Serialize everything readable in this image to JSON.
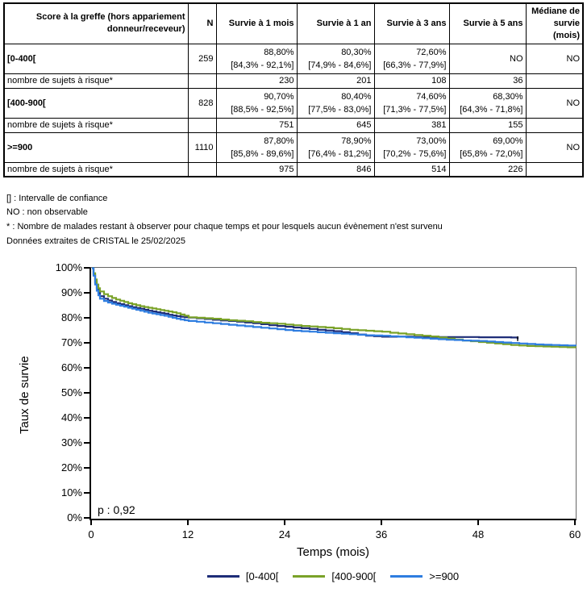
{
  "table": {
    "headers": {
      "score": "Score à la greffe (hors appariement\ndonneur/receveur)",
      "n": "N",
      "s1m": "Survie à 1 mois",
      "s1y": "Survie à 1 an",
      "s3y": "Survie à 3 ans",
      "s5y": "Survie à 5 ans",
      "median": "Médiane de\nsurvie (mois)"
    },
    "risk_label": "nombre de sujets à risque*",
    "groups": [
      {
        "label": "[0-400[",
        "n": "259",
        "surv": [
          {
            "pct": "88,80%",
            "ci": "[84,3% - 92,1%]"
          },
          {
            "pct": "80,30%",
            "ci": "[74,9% - 84,6%]"
          },
          {
            "pct": "72,60%",
            "ci": "[66,3% - 77,9%]"
          },
          {
            "pct": "NO",
            "ci": ""
          }
        ],
        "median": "NO",
        "at_risk": [
          "230",
          "201",
          "108",
          "36"
        ]
      },
      {
        "label": "[400-900[",
        "n": "828",
        "surv": [
          {
            "pct": "90,70%",
            "ci": "[88,5% - 92,5%]"
          },
          {
            "pct": "80,40%",
            "ci": "[77,5% - 83,0%]"
          },
          {
            "pct": "74,60%",
            "ci": "[71,3% - 77,5%]"
          },
          {
            "pct": "68,30%",
            "ci": "[64,3% - 71,8%]"
          }
        ],
        "median": "NO",
        "at_risk": [
          "751",
          "645",
          "381",
          "155"
        ]
      },
      {
        "label": ">=900",
        "n": "1110",
        "surv": [
          {
            "pct": "87,80%",
            "ci": "[85,8% - 89,6%]"
          },
          {
            "pct": "78,90%",
            "ci": "[76,4% - 81,2%]"
          },
          {
            "pct": "73,00%",
            "ci": "[70,2% - 75,6%]"
          },
          {
            "pct": "69,00%",
            "ci": "[65,8% - 72,0%]"
          }
        ],
        "median": "NO",
        "at_risk": [
          "975",
          "846",
          "514",
          "226"
        ]
      }
    ]
  },
  "footnotes": [
    "[] : Intervalle de confiance",
    "NO : non observable",
    "* : Nombre de malades restant à observer pour chaque temps et pour lesquels aucun évènement n'est survenu",
    "Données extraites de CRISTAL le 25/02/2025"
  ],
  "chart_data": {
    "type": "line",
    "subtype": "kaplan-meier-step",
    "title": "",
    "xlabel": "Temps (mois)",
    "ylabel": "Taux de survie",
    "annotation": "p : 0,92",
    "xlim": [
      0,
      60
    ],
    "ylim": [
      0,
      100
    ],
    "xticks": [
      0,
      12,
      24,
      36,
      48,
      60
    ],
    "ytick_step": 10,
    "ytick_suffix": "%",
    "grid": false,
    "legend_position": "bottom",
    "series": [
      {
        "name": "[0-400[",
        "color": "#1e2d78",
        "censor_tick": [
          52.8,
          71.8
        ],
        "points": [
          [
            0,
            100
          ],
          [
            0.2,
            97.5
          ],
          [
            0.4,
            94.5
          ],
          [
            0.6,
            92
          ],
          [
            0.8,
            90.2
          ],
          [
            1,
            88.8
          ],
          [
            1.5,
            87.8
          ],
          [
            2,
            87.1
          ],
          [
            2.5,
            86.5
          ],
          [
            3,
            86
          ],
          [
            3.5,
            85.6
          ],
          [
            4,
            85.2
          ],
          [
            4.5,
            84.8
          ],
          [
            5,
            84.4
          ],
          [
            5.5,
            84.1
          ],
          [
            6,
            83.8
          ],
          [
            6.5,
            83.4
          ],
          [
            7,
            83
          ],
          [
            7.5,
            82.7
          ],
          [
            8,
            82.4
          ],
          [
            8.5,
            82.1
          ],
          [
            9,
            81.8
          ],
          [
            9.5,
            81.4
          ],
          [
            10,
            81.1
          ],
          [
            10.5,
            80.8
          ],
          [
            11,
            80.6
          ],
          [
            11.5,
            80.4
          ],
          [
            12,
            80.3
          ],
          [
            13,
            80
          ],
          [
            14,
            79.7
          ],
          [
            15,
            79.4
          ],
          [
            16,
            79.1
          ],
          [
            17,
            78.9
          ],
          [
            18,
            78.6
          ],
          [
            19,
            78.3
          ],
          [
            20,
            78
          ],
          [
            21,
            77.6
          ],
          [
            22,
            77.2
          ],
          [
            23,
            76.9
          ],
          [
            24,
            76.6
          ],
          [
            25,
            76.3
          ],
          [
            26,
            76
          ],
          [
            27,
            75.7
          ],
          [
            28,
            75.4
          ],
          [
            29,
            75.1
          ],
          [
            30,
            74.8
          ],
          [
            31,
            74.4
          ],
          [
            32,
            74
          ],
          [
            33,
            73.5
          ],
          [
            34,
            73
          ],
          [
            35,
            72.8
          ],
          [
            36,
            72.6
          ],
          [
            38,
            72.6
          ],
          [
            40,
            72.5
          ],
          [
            44,
            72.5
          ],
          [
            48,
            72.4
          ],
          [
            52,
            72.3
          ],
          [
            52.8,
            71.6
          ]
        ]
      },
      {
        "name": "[400-900[",
        "color": "#7aa228",
        "points": [
          [
            0,
            100
          ],
          [
            0.2,
            98
          ],
          [
            0.4,
            95.5
          ],
          [
            0.6,
            93.5
          ],
          [
            0.8,
            92
          ],
          [
            1,
            90.7
          ],
          [
            1.5,
            89.6
          ],
          [
            2,
            88.8
          ],
          [
            2.5,
            88.1
          ],
          [
            3,
            87.5
          ],
          [
            3.5,
            87
          ],
          [
            4,
            86.5
          ],
          [
            4.5,
            86
          ],
          [
            5,
            85.6
          ],
          [
            5.5,
            85.2
          ],
          [
            6,
            84.8
          ],
          [
            6.5,
            84.5
          ],
          [
            7,
            84.2
          ],
          [
            7.5,
            83.9
          ],
          [
            8,
            83.6
          ],
          [
            8.5,
            83.3
          ],
          [
            9,
            83
          ],
          [
            9.5,
            82.7
          ],
          [
            10,
            82.4
          ],
          [
            10.5,
            82
          ],
          [
            11,
            81.5
          ],
          [
            11.5,
            81
          ],
          [
            12,
            80.4
          ],
          [
            13,
            80.2
          ],
          [
            14,
            80
          ],
          [
            15,
            79.8
          ],
          [
            16,
            79.5
          ],
          [
            17,
            79.2
          ],
          [
            18,
            79
          ],
          [
            19,
            78.8
          ],
          [
            20,
            78.5
          ],
          [
            21,
            78.2
          ],
          [
            22,
            78
          ],
          [
            23,
            77.8
          ],
          [
            24,
            77.5
          ],
          [
            25,
            77.2
          ],
          [
            26,
            76.9
          ],
          [
            27,
            76.7
          ],
          [
            28,
            76.5
          ],
          [
            29,
            76.3
          ],
          [
            30,
            76
          ],
          [
            31,
            75.7
          ],
          [
            32,
            75.4
          ],
          [
            33,
            75.2
          ],
          [
            34,
            75
          ],
          [
            35,
            74.8
          ],
          [
            36,
            74.6
          ],
          [
            37,
            74.2
          ],
          [
            38,
            73.9
          ],
          [
            39,
            73.6
          ],
          [
            40,
            73.3
          ],
          [
            41,
            73
          ],
          [
            42,
            72.7
          ],
          [
            43,
            72.3
          ],
          [
            44,
            71.9
          ],
          [
            45,
            71.5
          ],
          [
            46,
            71.1
          ],
          [
            47,
            70.8
          ],
          [
            48,
            70.5
          ],
          [
            49,
            70.2
          ],
          [
            50,
            69.9
          ],
          [
            51,
            69.6
          ],
          [
            52,
            69.3
          ],
          [
            53,
            69.1
          ],
          [
            54,
            68.9
          ],
          [
            55,
            68.8
          ],
          [
            56,
            68.7
          ],
          [
            57,
            68.6
          ],
          [
            58,
            68.5
          ],
          [
            59,
            68.4
          ],
          [
            60,
            68.3
          ]
        ]
      },
      {
        "name": ">=900",
        "color": "#2e7de0",
        "points": [
          [
            0,
            100
          ],
          [
            0.2,
            97
          ],
          [
            0.4,
            93.5
          ],
          [
            0.6,
            91
          ],
          [
            0.8,
            89.2
          ],
          [
            1,
            87.8
          ],
          [
            1.5,
            86.9
          ],
          [
            2,
            86.3
          ],
          [
            2.5,
            85.8
          ],
          [
            3,
            85.4
          ],
          [
            3.5,
            85
          ],
          [
            4,
            84.6
          ],
          [
            4.5,
            84.2
          ],
          [
            5,
            83.8
          ],
          [
            5.5,
            83.4
          ],
          [
            6,
            83
          ],
          [
            6.5,
            82.6
          ],
          [
            7,
            82.2
          ],
          [
            7.5,
            81.9
          ],
          [
            8,
            81.6
          ],
          [
            8.5,
            81.3
          ],
          [
            9,
            81
          ],
          [
            9.5,
            80.6
          ],
          [
            10,
            80.2
          ],
          [
            10.5,
            79.8
          ],
          [
            11,
            79.5
          ],
          [
            11.5,
            79.2
          ],
          [
            12,
            78.9
          ],
          [
            13,
            78.6
          ],
          [
            14,
            78.3
          ],
          [
            15,
            78
          ],
          [
            16,
            77.7
          ],
          [
            17,
            77.4
          ],
          [
            18,
            77.1
          ],
          [
            19,
            76.8
          ],
          [
            20,
            76.5
          ],
          [
            21,
            76.2
          ],
          [
            22,
            75.9
          ],
          [
            23,
            75.6
          ],
          [
            24,
            75.3
          ],
          [
            25,
            75
          ],
          [
            26,
            74.8
          ],
          [
            27,
            74.6
          ],
          [
            28,
            74.4
          ],
          [
            29,
            74.2
          ],
          [
            30,
            74
          ],
          [
            31,
            73.8
          ],
          [
            32,
            73.6
          ],
          [
            33,
            73.4
          ],
          [
            34,
            73.2
          ],
          [
            35,
            73.1
          ],
          [
            36,
            73
          ],
          [
            37,
            72.8
          ],
          [
            38,
            72.6
          ],
          [
            39,
            72.4
          ],
          [
            40,
            72.2
          ],
          [
            41,
            72
          ],
          [
            42,
            71.8
          ],
          [
            43,
            71.6
          ],
          [
            44,
            71.4
          ],
          [
            45,
            71.3
          ],
          [
            46,
            71.1
          ],
          [
            47,
            71
          ],
          [
            48,
            70.9
          ],
          [
            49,
            70.7
          ],
          [
            50,
            70.5
          ],
          [
            51,
            70.3
          ],
          [
            52,
            70.1
          ],
          [
            53,
            69.9
          ],
          [
            54,
            69.7
          ],
          [
            55,
            69.5
          ],
          [
            56,
            69.4
          ],
          [
            57,
            69.3
          ],
          [
            58,
            69.2
          ],
          [
            59,
            69.1
          ],
          [
            60,
            69
          ]
        ]
      }
    ]
  }
}
